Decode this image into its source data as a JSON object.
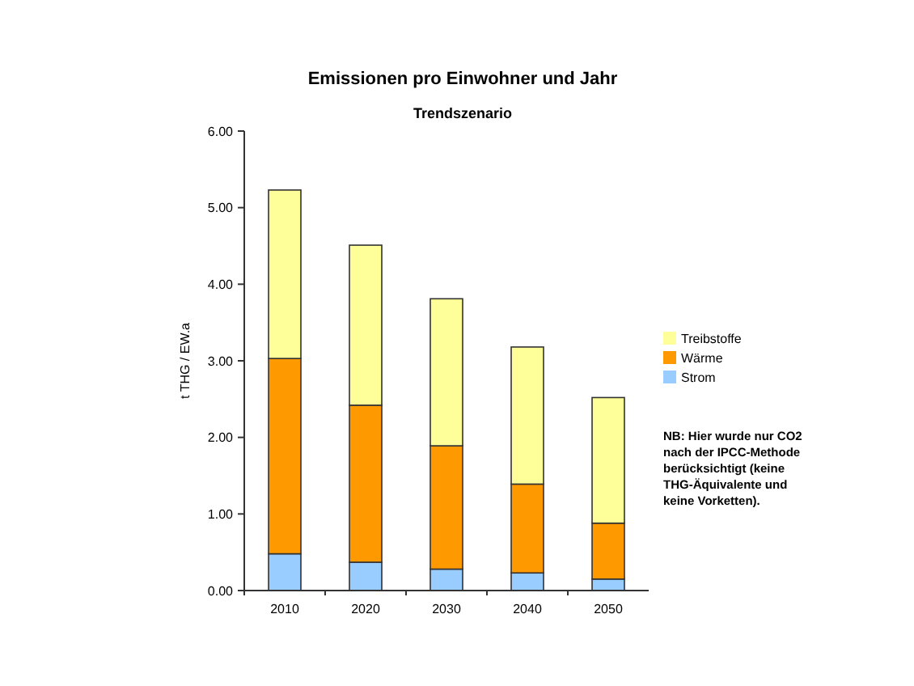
{
  "chart_data": {
    "type": "bar",
    "title": "Emissionen pro Einwohner und Jahr",
    "subtitle": "Trendszenario",
    "ylabel": "t THG / EW.a",
    "categories": [
      "2010",
      "2020",
      "2030",
      "2040",
      "2050"
    ],
    "stacked": true,
    "series": [
      {
        "name": "Strom",
        "color": "#99ccff",
        "values": [
          0.48,
          0.37,
          0.28,
          0.23,
          0.15
        ]
      },
      {
        "name": "Wärme",
        "color": "#ff9900",
        "values": [
          2.55,
          2.05,
          1.61,
          1.16,
          0.73
        ]
      },
      {
        "name": "Treibstoffe",
        "color": "#ffff99",
        "values": [
          2.2,
          2.09,
          1.92,
          1.79,
          1.64
        ]
      }
    ],
    "ylim": [
      0,
      6
    ],
    "yticks": [
      {
        "value": 0,
        "label": "0.00"
      },
      {
        "value": 1,
        "label": "1.00"
      },
      {
        "value": 2,
        "label": "2.00"
      },
      {
        "value": 3,
        "label": "3.00"
      },
      {
        "value": 4,
        "label": "4.00"
      },
      {
        "value": 5,
        "label": "5.00"
      },
      {
        "value": 6,
        "label": "6.00"
      }
    ],
    "grid": false,
    "legend": "right",
    "annotations": [
      "NB: Hier wurde nur CO2 nach der IPCC-Methode berücksichtigt (keine THG-Äquivalente und keine Vorketten)."
    ]
  }
}
